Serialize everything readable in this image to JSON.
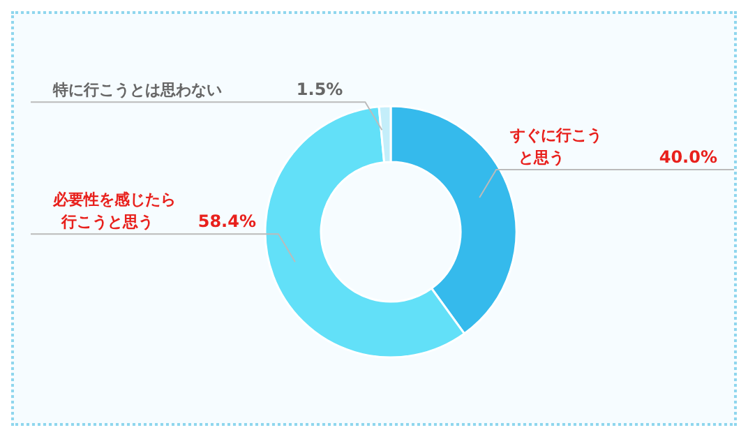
{
  "chart_data": {
    "type": "donut",
    "categories": [
      "すぐに行こうと思う",
      "必要性を感じたら行こうと思う",
      "特に行こうとは思わない"
    ],
    "values": [
      40.0,
      58.4,
      1.5
    ],
    "colors": [
      "#35baec",
      "#62e0f8",
      "#c4eefa"
    ],
    "value_labels": [
      "40.0%",
      "58.4%",
      "1.5%"
    ],
    "legend": false
  }
}
